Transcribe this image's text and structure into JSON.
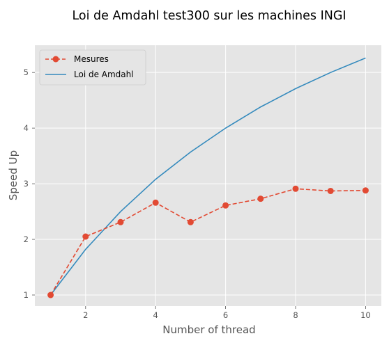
{
  "chart_data": {
    "type": "line",
    "title": "Loi de Amdahl test300 sur les machines INGI",
    "xlabel": "Number of thread",
    "ylabel": "Speed Up",
    "xlim": [
      0.55,
      10.45
    ],
    "ylim": [
      0.8,
      5.49
    ],
    "xticks": [
      2,
      4,
      6,
      8,
      10
    ],
    "yticks": [
      1,
      2,
      3,
      4,
      5
    ],
    "grid": true,
    "legend_position": "top-left",
    "x": [
      1,
      2,
      3,
      4,
      5,
      6,
      7,
      8,
      9,
      10
    ],
    "series": [
      {
        "name": "Mesures",
        "style": "dashed-markers",
        "color": "#E24A33",
        "values": [
          1.0,
          2.05,
          2.31,
          2.66,
          2.31,
          2.61,
          2.73,
          2.91,
          2.87,
          2.88
        ]
      },
      {
        "name": "Loi de Amdahl",
        "style": "solid",
        "color": "#348ABD",
        "values": [
          1.0,
          1.82,
          2.5,
          3.08,
          3.57,
          4.0,
          4.38,
          4.71,
          5.0,
          5.26
        ]
      }
    ]
  }
}
